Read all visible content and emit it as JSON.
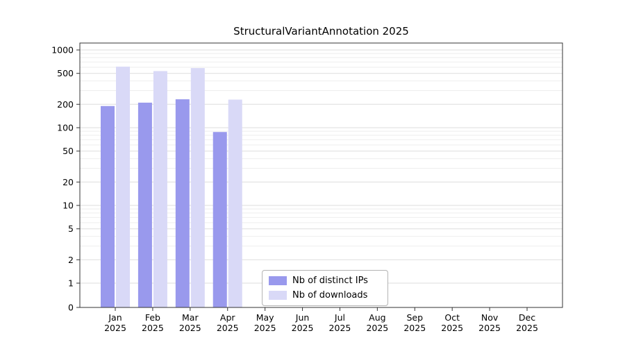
{
  "chart_data": {
    "type": "bar",
    "title": "StructuralVariantAnnotation 2025",
    "categories": [
      "Jan",
      "Feb",
      "Mar",
      "Apr",
      "May",
      "Jun",
      "Jul",
      "Aug",
      "Sep",
      "Oct",
      "Nov",
      "Dec"
    ],
    "year": "2025",
    "series": [
      {
        "name": "Nb of distinct IPs",
        "color": "#9999ed",
        "values": [
          190,
          210,
          232,
          88,
          0,
          0,
          0,
          0,
          0,
          0,
          0,
          0
        ]
      },
      {
        "name": "Nb of downloads",
        "color": "#d9d9f7",
        "values": [
          610,
          535,
          585,
          230,
          0,
          0,
          0,
          0,
          0,
          0,
          0,
          0
        ]
      }
    ],
    "yscale": "log",
    "yticks": [
      0,
      1,
      2,
      5,
      10,
      20,
      50,
      100,
      200,
      500,
      1000
    ],
    "ylim": [
      0,
      1230
    ],
    "grid": true,
    "legend_position": "lower center inside",
    "colors": {
      "grid_major": "#dddddd",
      "grid_minor": "#eeeeee",
      "axis": "#333333",
      "text": "#000000",
      "background": "#ffffff"
    }
  }
}
